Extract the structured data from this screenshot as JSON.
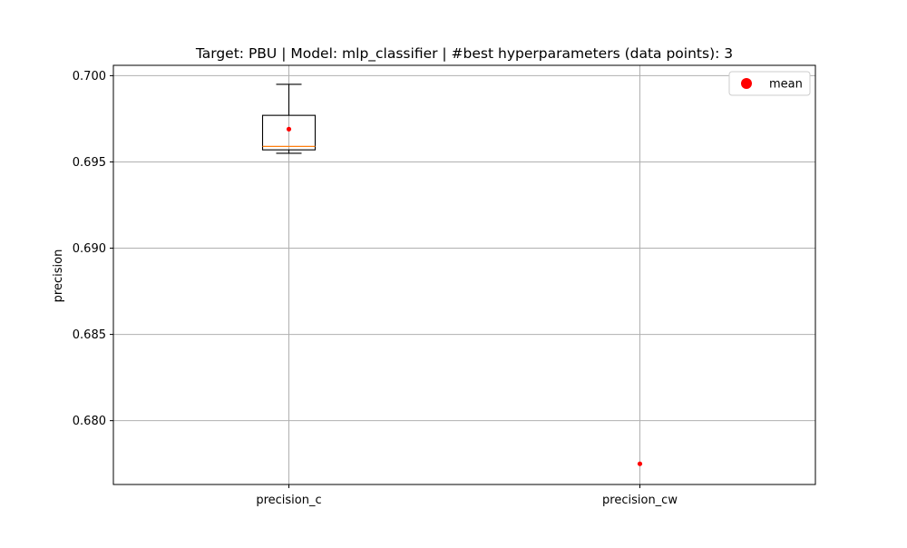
{
  "chart_data": {
    "type": "box",
    "title": "Target: PBU | Model: mlp_classifier | #best hyperparameters (data points): 3",
    "xlabel": "",
    "ylabel": "precision",
    "categories": [
      "precision_c",
      "precision_cw"
    ],
    "boxes": [
      {
        "category": "precision_c",
        "whisker_low": 0.6955,
        "q1": 0.6957,
        "median": 0.6959,
        "q3": 0.6977,
        "whisker_high": 0.6995,
        "mean": 0.6969
      },
      {
        "category": "precision_cw",
        "whisker_low": 0.6775,
        "q1": 0.6775,
        "median": 0.6775,
        "q3": 0.6775,
        "whisker_high": 0.6775,
        "mean": 0.6775
      }
    ],
    "ylim": [
      0.6763,
      0.7006
    ],
    "yticks": [
      0.68,
      0.685,
      0.69,
      0.695,
      0.7
    ],
    "ytick_labels": [
      "0.680",
      "0.685",
      "0.690",
      "0.695",
      "0.700"
    ],
    "grid": true,
    "legend": {
      "entries": [
        "mean"
      ],
      "placement": "top-right"
    },
    "colors": {
      "box": "#000000",
      "median": "#ff7f0e",
      "mean": "#ff0000",
      "grid": "#b0b0b0"
    }
  }
}
